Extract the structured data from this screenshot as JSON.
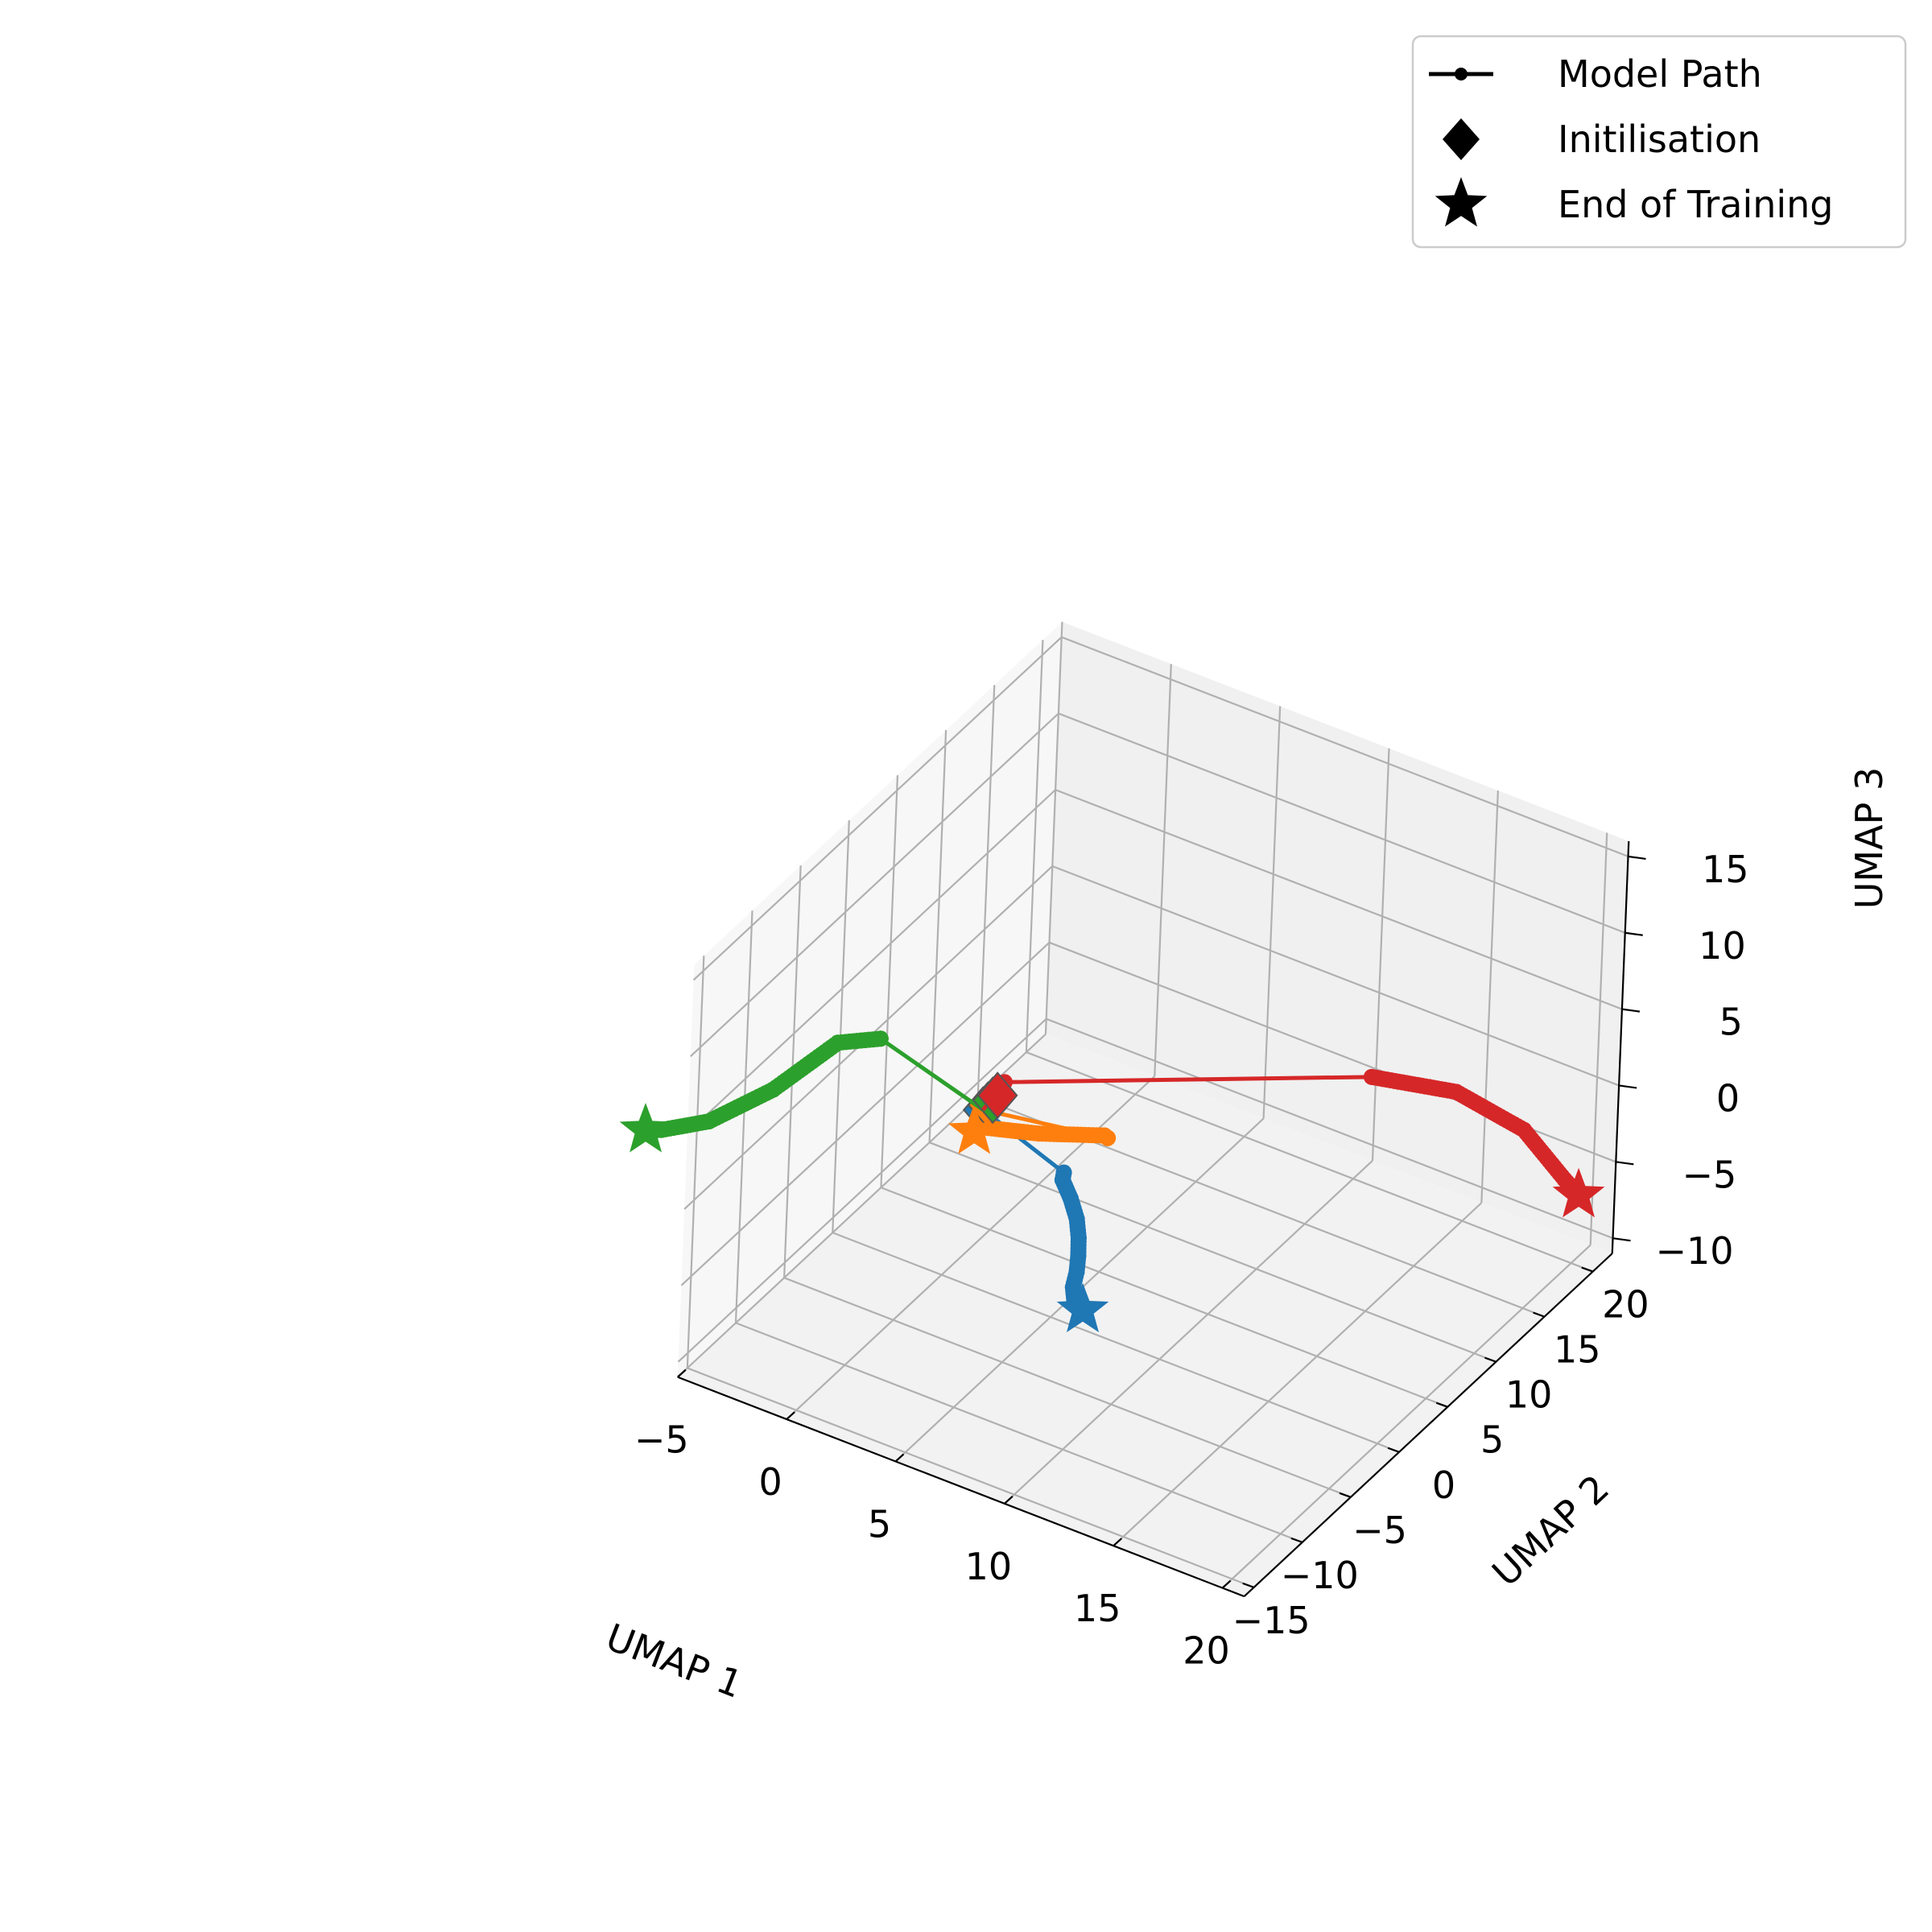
{
  "chart_data": {
    "type": "line3d",
    "xlabel": "UMAP 1",
    "ylabel": "UMAP 2",
    "zlabel": "UMAP 3",
    "xticks": [
      -5,
      0,
      5,
      10,
      15,
      20
    ],
    "yticks": [
      -15,
      -10,
      -5,
      0,
      5,
      10,
      15,
      20
    ],
    "zticks": [
      -10,
      -5,
      0,
      5,
      10,
      15
    ],
    "xlim": [
      -5,
      21
    ],
    "ylim": [
      -16,
      22
    ],
    "zlim": [
      -11,
      16
    ],
    "grid": true,
    "legend": {
      "position": "top-right",
      "entries": [
        {
          "label": "Model Path",
          "marker": "line-dot"
        },
        {
          "label": "Initilisation",
          "marker": "diamond"
        },
        {
          "label": "End of Training",
          "marker": "star"
        }
      ]
    },
    "series": [
      {
        "color": "#1f77b4",
        "points": [
          [
            2.0,
            -1.0,
            1.5
          ],
          [
            4.5,
            2.0,
            -3.0
          ],
          [
            4.2,
            2.6,
            -4.0
          ],
          [
            4.6,
            2.6,
            -5.0
          ],
          [
            5.0,
            2.4,
            -6.0
          ],
          [
            5.2,
            2.2,
            -7.0
          ],
          [
            5.3,
            2.0,
            -8.0
          ],
          [
            5.3,
            1.9,
            -9.0
          ],
          [
            5.2,
            1.8,
            -10.0
          ],
          [
            5.3,
            1.8,
            -11.0
          ],
          [
            5.6,
            2.0,
            -11.4
          ]
        ]
      },
      {
        "color": "#ff7f0e",
        "points": [
          [
            2.0,
            -1.0,
            1.5
          ],
          [
            6.0,
            3.0,
            -0.5
          ],
          [
            5.8,
            3.1,
            -0.5
          ],
          [
            3.5,
            1.5,
            -0.7
          ],
          [
            1.5,
            0.0,
            -0.5
          ],
          [
            1.3,
            -0.2,
            -0.8
          ]
        ]
      },
      {
        "color": "#2ca02c",
        "points": [
          [
            2.0,
            -1.0,
            1.5
          ],
          [
            -1.5,
            -4.0,
            6.0
          ],
          [
            -3.0,
            -5.0,
            5.5
          ],
          [
            -5.0,
            -7.0,
            2.5
          ],
          [
            -7.0,
            -9.0,
            0.5
          ],
          [
            -8.5,
            -10.5,
            0.0
          ],
          [
            -9.0,
            -11.0,
            0.0
          ]
        ]
      },
      {
        "color": "#d62728",
        "points": [
          [
            2.0,
            -1.0,
            1.5
          ],
          [
            2.5,
            0.0,
            3.0
          ],
          [
            15.5,
            8.5,
            5.5
          ],
          [
            18.5,
            10.5,
            5.0
          ],
          [
            21.0,
            12.0,
            3.0
          ],
          [
            22.5,
            13.0,
            0.0
          ],
          [
            23.0,
            13.4,
            -1.0
          ]
        ]
      }
    ]
  }
}
